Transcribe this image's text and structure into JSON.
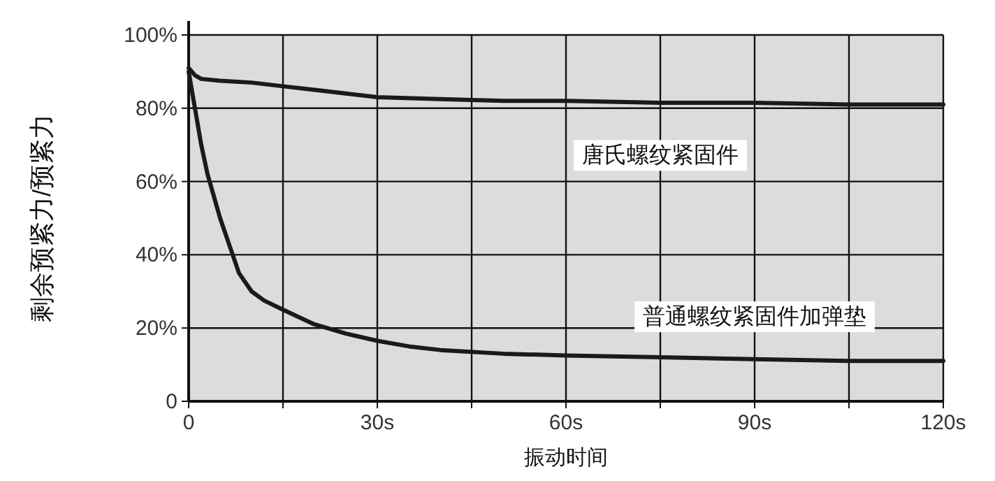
{
  "chart_data": {
    "type": "line",
    "ylabel": "剩余预紧力/预紧力",
    "xlabel": "振动时间",
    "xlim": [
      0,
      120
    ],
    "ylim": [
      0,
      100
    ],
    "xticks": [
      {
        "value": 0,
        "label": "0"
      },
      {
        "value": 15,
        "label": null
      },
      {
        "value": 30,
        "label": "30s"
      },
      {
        "value": 45,
        "label": null
      },
      {
        "value": 60,
        "label": "60s"
      },
      {
        "value": 75,
        "label": null
      },
      {
        "value": 90,
        "label": "90s"
      },
      {
        "value": 105,
        "label": null
      },
      {
        "value": 120,
        "label": "120s"
      }
    ],
    "yticks": [
      {
        "value": 0,
        "label": "0"
      },
      {
        "value": 20,
        "label": "20%"
      },
      {
        "value": 40,
        "label": "40%"
      },
      {
        "value": 60,
        "label": "60%"
      },
      {
        "value": 80,
        "label": "80%"
      },
      {
        "value": 100,
        "label": "100%"
      }
    ],
    "grid": true,
    "legend": false,
    "marker": "none",
    "line_style": "solid",
    "series": [
      {
        "name": "唐氏螺纹紧固件",
        "color": "#1a1a1a",
        "x": [
          0,
          1,
          2,
          5,
          10,
          15,
          20,
          25,
          30,
          40,
          50,
          60,
          75,
          90,
          105,
          120
        ],
        "values": [
          91,
          89,
          88,
          87.5,
          87,
          86,
          85,
          84,
          83,
          82.5,
          82,
          82,
          81.5,
          81.5,
          81,
          81
        ]
      },
      {
        "name": "普通螺纹紧固件加弹垫",
        "color": "#1a1a1a",
        "x": [
          0,
          1,
          2,
          3,
          5,
          7,
          8,
          10,
          12,
          15,
          20,
          25,
          30,
          35,
          40,
          50,
          60,
          75,
          90,
          105,
          120
        ],
        "values": [
          90,
          80,
          70,
          62,
          50,
          40,
          35,
          30,
          27.5,
          25,
          21,
          18.5,
          16.5,
          15,
          14,
          13,
          12.5,
          12,
          11.5,
          11,
          11
        ]
      }
    ]
  }
}
